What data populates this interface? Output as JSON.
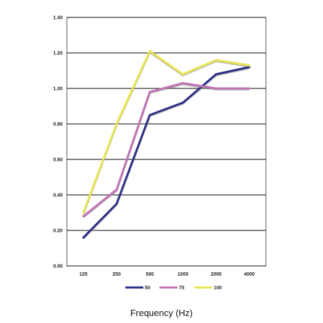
{
  "chart_data": {
    "type": "line",
    "title": "",
    "xlabel": "Frequency (Hz)",
    "ylabel": "",
    "categories": [
      "125",
      "250",
      "500",
      "1000",
      "2000",
      "4000"
    ],
    "ylim": [
      0,
      1.4
    ],
    "yticks": [
      "0.00",
      "0.20",
      "0.40",
      "0.60",
      "0.80",
      "1.00",
      "1.20",
      "1.40"
    ],
    "grid": "horizontal",
    "legend_position": "bottom",
    "series": [
      {
        "name": "50",
        "color": "#2b2f86",
        "values": [
          0.16,
          0.35,
          0.85,
          0.92,
          1.08,
          1.12
        ]
      },
      {
        "name": "75",
        "color": "#c274b6",
        "values": [
          0.28,
          0.43,
          0.98,
          1.03,
          1.0,
          1.0
        ]
      },
      {
        "name": "100",
        "color": "#e9e652",
        "values": [
          0.3,
          0.8,
          1.21,
          1.08,
          1.16,
          1.13
        ]
      }
    ]
  }
}
